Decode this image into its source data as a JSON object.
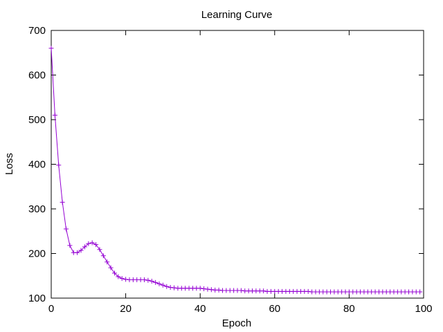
{
  "chart_data": {
    "type": "line",
    "title": "Learning Curve",
    "xlabel": "Epoch",
    "ylabel": "Loss",
    "xlim": [
      0,
      100
    ],
    "ylim": [
      100,
      700
    ],
    "xticks": [
      0,
      20,
      40,
      60,
      80,
      100
    ],
    "yticks": [
      100,
      200,
      300,
      400,
      500,
      600,
      700
    ],
    "grid": false,
    "series": [
      {
        "color": "#9400d3",
        "marker": "plus",
        "x": [
          0,
          1,
          2,
          3,
          4,
          5,
          6,
          7,
          8,
          9,
          10,
          11,
          12,
          13,
          14,
          15,
          16,
          17,
          18,
          19,
          20,
          21,
          22,
          23,
          24,
          25,
          26,
          27,
          28,
          29,
          30,
          31,
          32,
          33,
          34,
          35,
          36,
          37,
          38,
          39,
          40,
          41,
          42,
          43,
          44,
          45,
          46,
          47,
          48,
          49,
          50,
          51,
          52,
          53,
          54,
          55,
          56,
          57,
          58,
          59,
          60,
          61,
          62,
          63,
          64,
          65,
          66,
          67,
          68,
          69,
          70,
          71,
          72,
          73,
          74,
          75,
          76,
          77,
          78,
          79,
          80,
          81,
          82,
          83,
          84,
          85,
          86,
          87,
          88,
          89,
          90,
          91,
          92,
          93,
          94,
          95,
          96,
          97,
          98,
          99
        ],
        "values": [
          660,
          510,
          398,
          315,
          255,
          218,
          202,
          202,
          207,
          215,
          222,
          224,
          220,
          209,
          195,
          181,
          168,
          156,
          148,
          144,
          142,
          141,
          141,
          141,
          141,
          141,
          140,
          138,
          135,
          132,
          129,
          126,
          124,
          123,
          122,
          122,
          122,
          122,
          122,
          122,
          122,
          121,
          120,
          119,
          118,
          118,
          117,
          117,
          117,
          117,
          117,
          117,
          116,
          116,
          116,
          116,
          116,
          116,
          115,
          115,
          115,
          115,
          115,
          115,
          115,
          115,
          115,
          115,
          115,
          115,
          114,
          114,
          114,
          114,
          114,
          114,
          114,
          114,
          114,
          114,
          114,
          114,
          114,
          114,
          114,
          114,
          114,
          114,
          114,
          114,
          114,
          114,
          114,
          114,
          114,
          114,
          114,
          114,
          114,
          114
        ]
      }
    ]
  }
}
